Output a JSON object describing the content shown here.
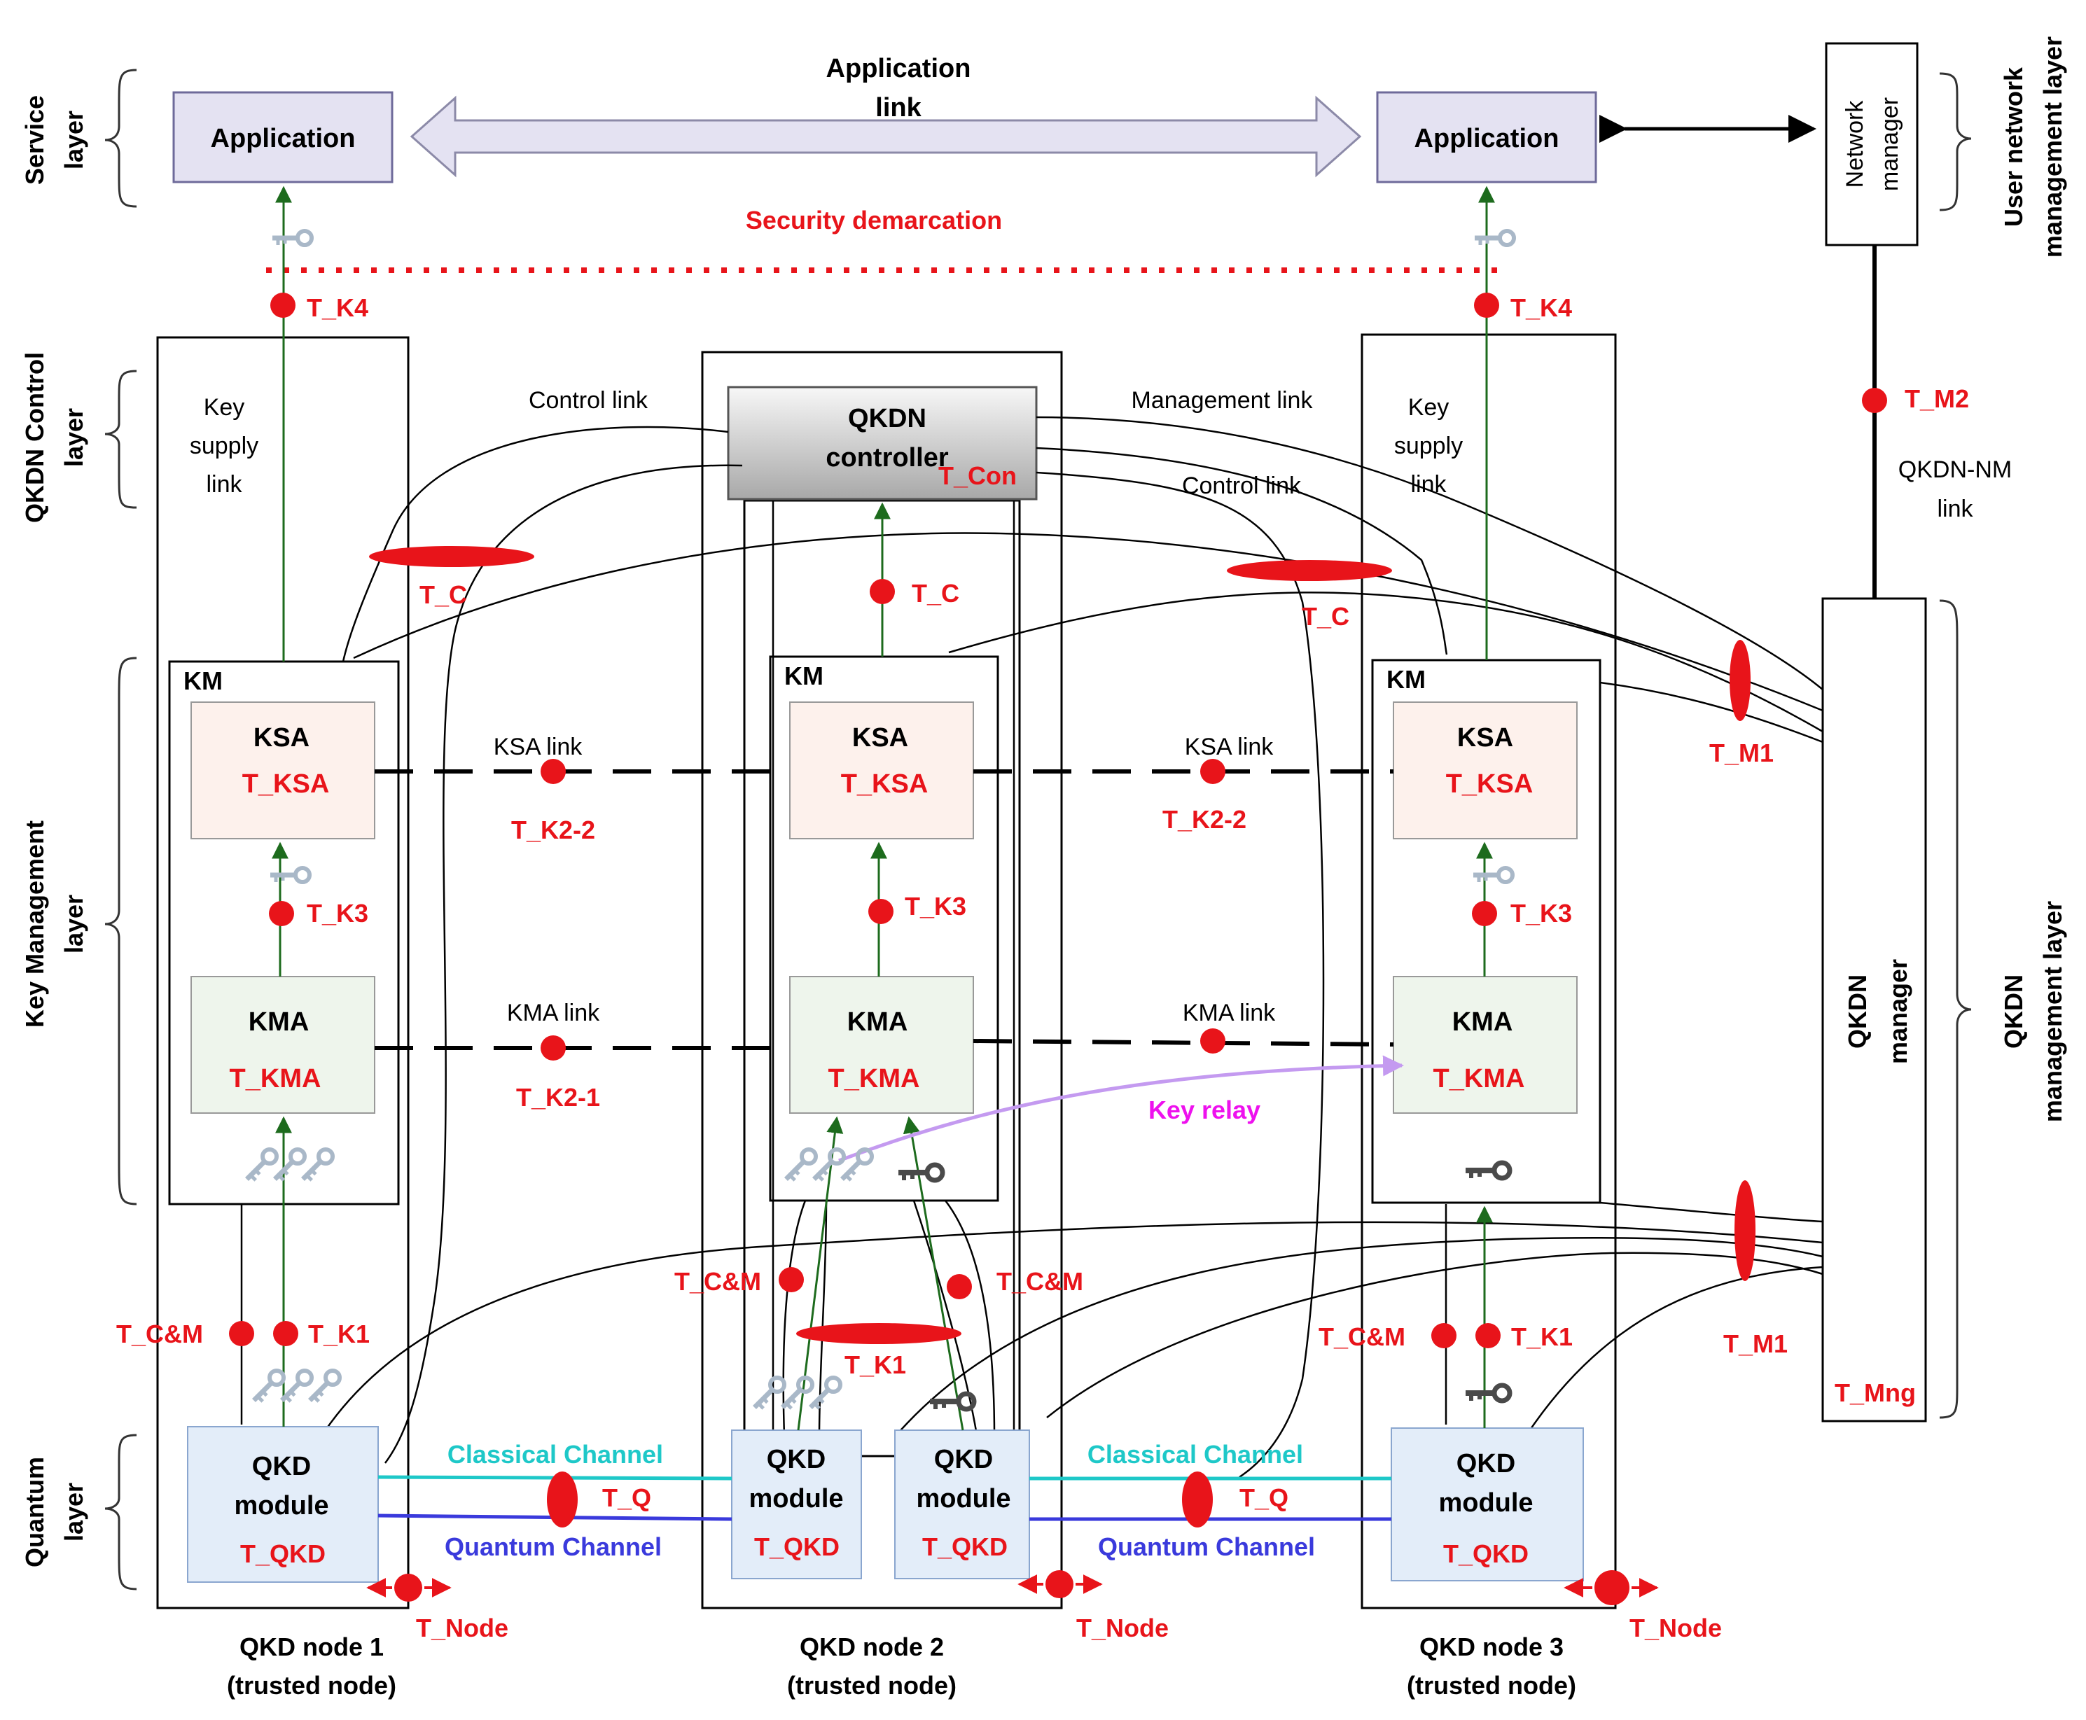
{
  "layers": {
    "service": [
      "Service",
      "layer"
    ],
    "control": [
      "QKDN Control",
      "layer"
    ],
    "key_mgmt": [
      "Key Management",
      "layer"
    ],
    "quantum": [
      "Quantum",
      "layer"
    ],
    "user_nm": [
      "User network",
      "management layer"
    ],
    "qkdn_mgmt": [
      "QKDN",
      "management layer"
    ]
  },
  "application": {
    "left": "Application",
    "right": "Application"
  },
  "application_link": [
    "Application",
    "link"
  ],
  "security_demarcation": "Security demarcation",
  "network_manager": [
    "Network",
    "manager"
  ],
  "qkdn_manager": [
    "QKDN",
    "manager"
  ],
  "qkdn_controller": [
    "QKDN",
    "controller"
  ],
  "link_labels": {
    "key_supply": [
      "Key",
      "supply",
      "link"
    ],
    "control_link": "Control  link",
    "management_link": "Management  link",
    "qkdn_nm": [
      "QKDN-NM",
      "link"
    ],
    "ksa_link": "KSA link",
    "kma_link": "KMA link",
    "classical": "Classical Channel",
    "quantum": "Quantum Channel",
    "key_relay": "Key relay"
  },
  "blocks": {
    "km": "KM",
    "ksa": "KSA",
    "kma": "KMA",
    "qkd_module": [
      "QKD",
      "module"
    ]
  },
  "threats": {
    "k4": "T_K4",
    "k3": "T_K3",
    "k1": "T_K1",
    "k2_2": "T_K2-2",
    "k2_1": "T_K2-1",
    "ksa": "T_KSA",
    "kma": "T_KMA",
    "qkd": "T_QKD",
    "c": "T_C",
    "con": "T_Con",
    "cm": "T_C&M",
    "q": "T_Q",
    "node": "T_Node",
    "m1": "T_M1",
    "m2": "T_M2",
    "mng": "T_Mng"
  },
  "nodes": [
    [
      "QKD node 1",
      "(trusted node)"
    ],
    [
      "QKD node 2",
      "(trusted node)"
    ],
    [
      "QKD node 3",
      "(trusted node)"
    ]
  ],
  "colors": {
    "threat": "#e8141a",
    "key_arrow": "#1d6b1d",
    "app_box": "#e4e2f2",
    "ksa_box": "#fdf1ec",
    "kma_box": "#eef5ec",
    "qkd_box": "#e3edf9",
    "classical": "#1ec8c8",
    "quantum": "#3a3adc",
    "relay_arrow": "#c49af0",
    "relay_text": "#ee11ee"
  }
}
